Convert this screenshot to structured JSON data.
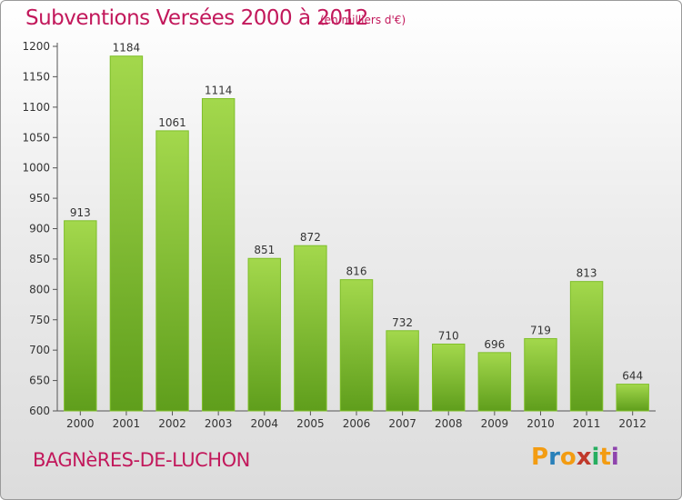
{
  "header": {
    "title": "Subventions Versées 2000 à 2012",
    "subtitle": "(en milliers d'€)"
  },
  "footer": {
    "city": "BAGNèRES-DE-LUCHON",
    "logo_text": "Proxiti",
    "logo_colors": [
      "#f39c12",
      "#2980b9",
      "#f39c12",
      "#c0392b",
      "#27ae60",
      "#f39c12",
      "#8e44ad"
    ]
  },
  "colors": {
    "bar_light": "#a3d84c",
    "bar_dark": "#5f9e1c",
    "axis": "#555555",
    "grid": "#cfcfcf",
    "text": "#333333",
    "title": "#c2185b"
  },
  "chart_data": {
    "type": "bar",
    "title": "Subventions Versées 2000 à 2012",
    "subtitle": "(en milliers d'€)",
    "xlabel": "",
    "ylabel": "",
    "categories": [
      "2000",
      "2001",
      "2002",
      "2003",
      "2004",
      "2005",
      "2006",
      "2007",
      "2008",
      "2009",
      "2010",
      "2011",
      "2012"
    ],
    "values": [
      913,
      1184,
      1061,
      1114,
      851,
      872,
      816,
      732,
      710,
      696,
      719,
      813,
      644
    ],
    "ylim": [
      600,
      1200
    ],
    "yticks": [
      600,
      650,
      700,
      750,
      800,
      850,
      900,
      950,
      1000,
      1050,
      1100,
      1150,
      1200
    ],
    "grid": false,
    "legend": "none"
  }
}
